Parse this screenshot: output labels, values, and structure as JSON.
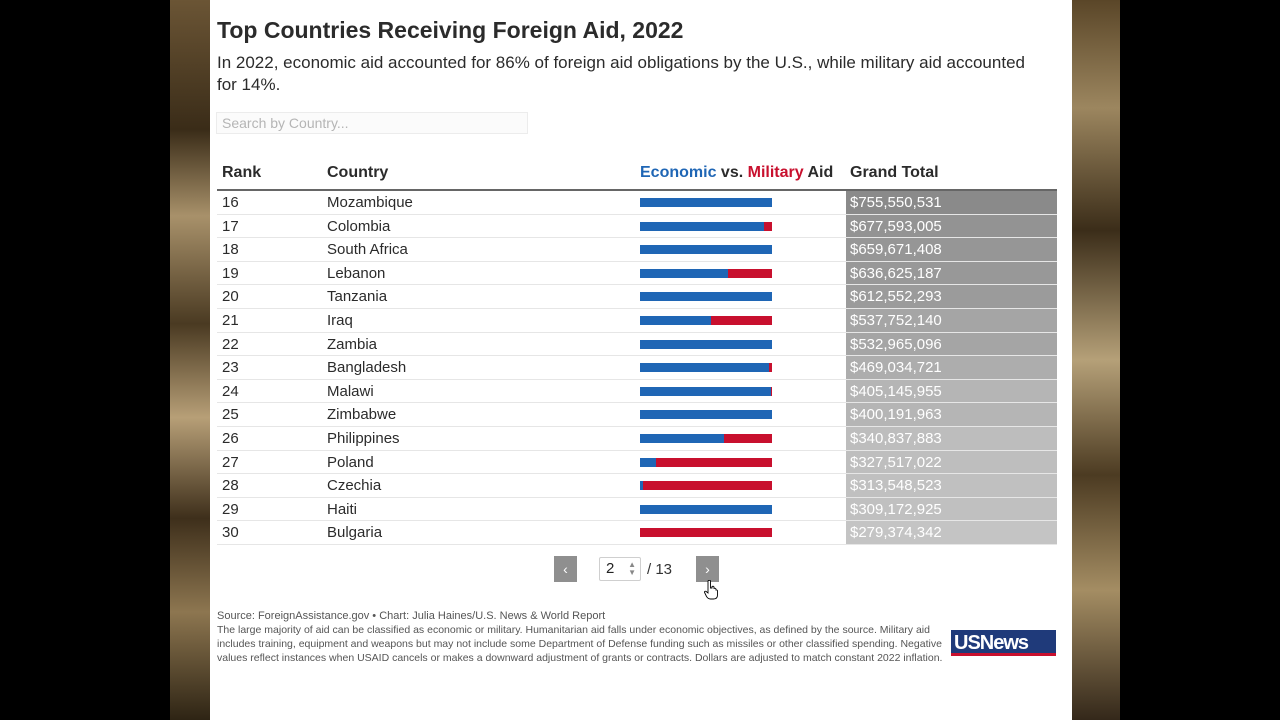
{
  "title": "Top Countries Receiving Foreign Aid, 2022",
  "subtitle": "In 2022, economic aid accounted for 86% of foreign aid obligations by the U.S., while military aid accounted for 14%.",
  "search": {
    "placeholder": "Search by Country..."
  },
  "columns": {
    "rank": "Rank",
    "country": "Country",
    "aid_economic": "Economic",
    "aid_vs": " vs. ",
    "aid_military": "Military",
    "aid_suffix": " Aid",
    "total": "Grand Total"
  },
  "colors": {
    "economic": "#1f66b5",
    "military": "#c8102e",
    "total_dark": "#8a8a8a",
    "total_light": "#c4c4c4"
  },
  "rows": [
    {
      "rank": "16",
      "country": "Mozambique",
      "economic_share": 1.0,
      "total": "$755,550,531",
      "total_value": 755550531
    },
    {
      "rank": "17",
      "country": "Colombia",
      "economic_share": 0.94,
      "total": "$677,593,005",
      "total_value": 677593005
    },
    {
      "rank": "18",
      "country": "South Africa",
      "economic_share": 1.0,
      "total": "$659,671,408",
      "total_value": 659671408
    },
    {
      "rank": "19",
      "country": "Lebanon",
      "economic_share": 0.67,
      "total": "$636,625,187",
      "total_value": 636625187
    },
    {
      "rank": "20",
      "country": "Tanzania",
      "economic_share": 1.0,
      "total": "$612,552,293",
      "total_value": 612552293
    },
    {
      "rank": "21",
      "country": "Iraq",
      "economic_share": 0.54,
      "total": "$537,752,140",
      "total_value": 537752140
    },
    {
      "rank": "22",
      "country": "Zambia",
      "economic_share": 1.0,
      "total": "$532,965,096",
      "total_value": 532965096
    },
    {
      "rank": "23",
      "country": "Bangladesh",
      "economic_share": 0.98,
      "total": "$469,034,721",
      "total_value": 469034721
    },
    {
      "rank": "24",
      "country": "Malawi",
      "economic_share": 0.99,
      "total": "$405,145,955",
      "total_value": 405145955
    },
    {
      "rank": "25",
      "country": "Zimbabwe",
      "economic_share": 1.0,
      "total": "$400,191,963",
      "total_value": 400191963
    },
    {
      "rank": "26",
      "country": "Philippines",
      "economic_share": 0.64,
      "total": "$340,837,883",
      "total_value": 340837883
    },
    {
      "rank": "27",
      "country": "Poland",
      "economic_share": 0.12,
      "total": "$327,517,022",
      "total_value": 327517022
    },
    {
      "rank": "28",
      "country": "Czechia",
      "economic_share": 0.02,
      "total": "$313,548,523",
      "total_value": 313548523
    },
    {
      "rank": "29",
      "country": "Haiti",
      "economic_share": 1.0,
      "total": "$309,172,925",
      "total_value": 309172925
    },
    {
      "rank": "30",
      "country": "Bulgaria",
      "economic_share": 0.0,
      "total": "$279,374,342",
      "total_value": 279374342
    }
  ],
  "pagination": {
    "current": "2",
    "total": "/ 13",
    "prev_icon": "‹",
    "next_icon": "›"
  },
  "source": "Source: ForeignAssistance.gov • Chart: Julia Haines/U.S. News & World Report",
  "note": "The large majority of aid can be classified as economic or military. Humanitarian aid falls under economic objectives, as defined by the source. Military aid includes training, equipment and weapons but may not include some Department of Defense funding such as missiles or other classified spending. Negative values reflect instances when USAID cancels or makes a downward adjustment of grants or contracts. Dollars are adjusted to match constant 2022 inflation.",
  "logo": "USNews"
}
